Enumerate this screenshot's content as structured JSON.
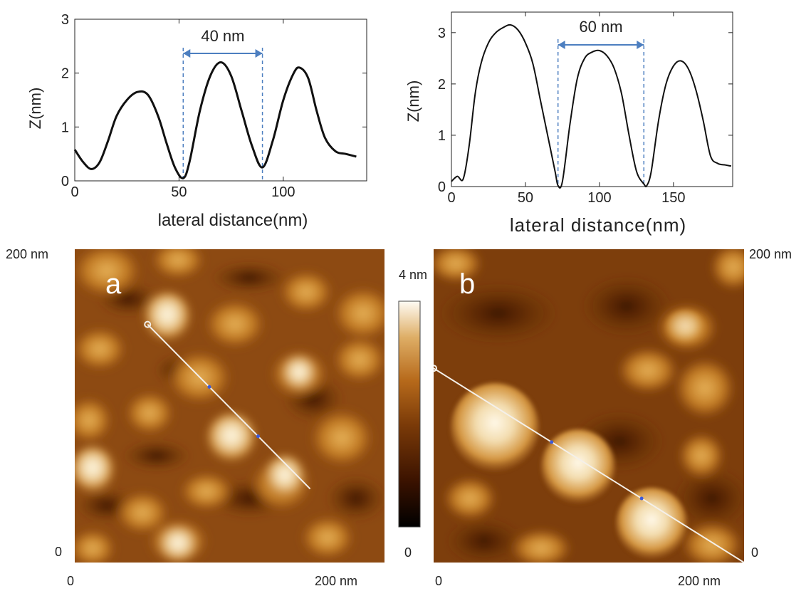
{
  "chart_data": [
    {
      "id": "profile-a",
      "type": "line",
      "xlabel": "lateral distance(nm)",
      "ylabel": "Z(nm)",
      "xlim": [
        0,
        140
      ],
      "ylim": [
        0,
        3
      ],
      "xticks": [
        "0",
        "50",
        "100"
      ],
      "yticks": [
        "0",
        "1",
        "2",
        "3"
      ],
      "annotation": {
        "text": "40 nm",
        "x_from": 52,
        "x_to": 90
      },
      "series": [
        {
          "x": [
            0,
            4,
            8,
            12,
            16,
            20,
            25,
            30,
            35,
            40,
            44,
            48,
            52,
            55,
            60,
            65,
            70,
            75,
            80,
            85,
            90,
            95,
            100,
            105,
            108,
            112,
            116,
            120,
            125,
            130,
            135
          ],
          "y": [
            0.58,
            0.35,
            0.22,
            0.35,
            0.75,
            1.2,
            1.5,
            1.65,
            1.6,
            1.2,
            0.7,
            0.25,
            0.05,
            0.35,
            1.3,
            1.95,
            2.2,
            1.95,
            1.3,
            0.65,
            0.25,
            0.75,
            1.5,
            2.0,
            2.1,
            1.9,
            1.3,
            0.8,
            0.55,
            0.5,
            0.45
          ]
        }
      ]
    },
    {
      "id": "profile-b",
      "type": "line",
      "xlabel": "lateral distance(nm)",
      "ylabel": "Z(nm)",
      "xlim": [
        0,
        190
      ],
      "ylim": [
        0,
        3.4
      ],
      "xticks": [
        "0",
        "50",
        "100",
        "150"
      ],
      "yticks": [
        "0",
        "1",
        "2",
        "3"
      ],
      "annotation": {
        "text": "60 nm",
        "x_from": 72,
        "x_to": 130
      },
      "series": [
        {
          "x": [
            0,
            4,
            8,
            12,
            16,
            20,
            25,
            30,
            35,
            40,
            45,
            50,
            55,
            60,
            65,
            70,
            72,
            75,
            80,
            85,
            90,
            95,
            100,
            105,
            110,
            115,
            120,
            125,
            130,
            132,
            135,
            140,
            145,
            150,
            155,
            160,
            165,
            170,
            175,
            180,
            185,
            189
          ],
          "y": [
            0.1,
            0.2,
            0.15,
            0.8,
            1.8,
            2.4,
            2.8,
            3.0,
            3.1,
            3.15,
            3.05,
            2.8,
            2.4,
            1.7,
            1.0,
            0.3,
            0.02,
            0.1,
            1.2,
            2.1,
            2.5,
            2.62,
            2.65,
            2.55,
            2.3,
            1.8,
            1.0,
            0.3,
            0.05,
            0.02,
            0.3,
            1.3,
            2.0,
            2.35,
            2.45,
            2.3,
            1.9,
            1.3,
            0.6,
            0.45,
            0.42,
            0.4
          ]
        }
      ]
    },
    {
      "id": "afm-a",
      "type": "heatmap",
      "panel_label": "a",
      "scan_size": "200 nm",
      "x_tick_labels": [
        "0",
        "200 nm"
      ],
      "y_tick_labels": [
        "0",
        "200 nm"
      ],
      "profile_line": {
        "from": [
          47,
          152
        ],
        "to": [
          152,
          47
        ]
      }
    },
    {
      "id": "afm-b",
      "type": "heatmap",
      "panel_label": "b",
      "scan_size": "200 nm",
      "x_tick_labels": [
        "0",
        "200 nm"
      ],
      "y_tick_labels": [
        "0",
        "200 nm"
      ],
      "profile_line": {
        "from": [
          0,
          124
        ],
        "to": [
          200,
          0
        ]
      }
    }
  ],
  "colorbar": {
    "max_label": "4 nm",
    "min_label": "0",
    "colors": [
      "#000000",
      "#3a1200",
      "#7a3a08",
      "#b76a1b",
      "#deae66",
      "#fffcf4"
    ]
  },
  "colors": {
    "line": "#111111",
    "annotation": "#4d7fc0",
    "profile_line": "#f4f0ea"
  }
}
